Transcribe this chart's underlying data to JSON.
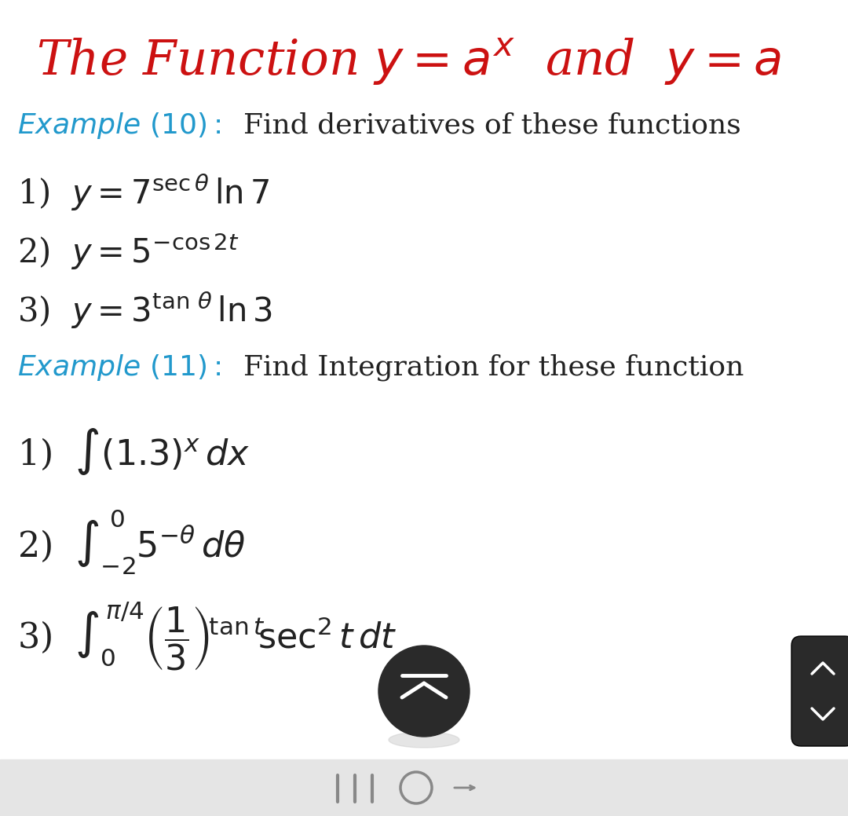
{
  "bg_color": "#ffffff",
  "title_color": "#cc1111",
  "example_color": "#2299cc",
  "text_color": "#222222",
  "bottom_bar_color": "#e5e5e5",
  "button_color": "#2a2a2a",
  "figwidth": 10.8,
  "figheight": 10.39,
  "dpi": 100
}
